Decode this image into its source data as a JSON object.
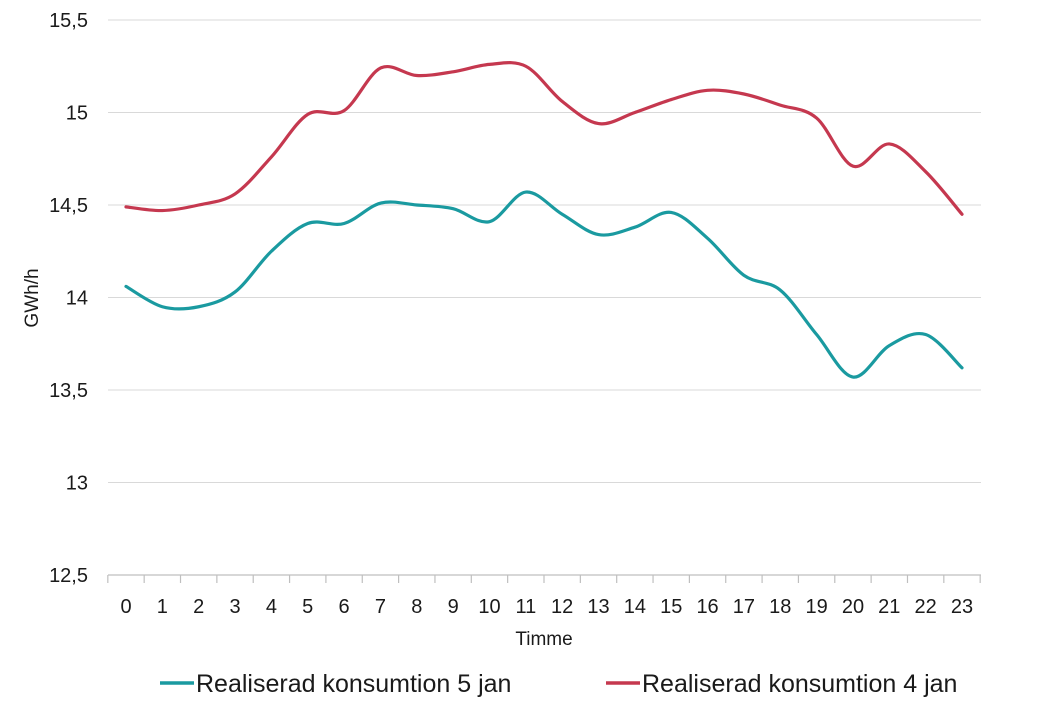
{
  "chart_data": {
    "type": "line",
    "xlabel": "Timme",
    "ylabel": "GWh/h",
    "x": [
      0,
      1,
      2,
      3,
      4,
      5,
      6,
      7,
      8,
      9,
      10,
      11,
      12,
      13,
      14,
      15,
      16,
      17,
      18,
      19,
      20,
      21,
      22,
      23
    ],
    "ylim": [
      12.5,
      15.5
    ],
    "yticks": [
      12.5,
      13,
      13.5,
      14,
      14.5,
      15,
      15.5
    ],
    "ytick_labels": [
      "12,5",
      "13",
      "13,5",
      "14",
      "14,5",
      "15",
      "15,5"
    ],
    "grid": "horizontal",
    "legend_position": "bottom",
    "series": [
      {
        "name": "Realiserad konsumtion 5 jan",
        "color": "#1a9aa0",
        "values": [
          14.06,
          13.95,
          13.95,
          14.03,
          14.25,
          14.4,
          14.4,
          14.51,
          14.5,
          14.48,
          14.41,
          14.57,
          14.45,
          14.34,
          14.38,
          14.46,
          14.32,
          14.12,
          14.04,
          13.8,
          13.57,
          13.74,
          13.8,
          13.62
        ]
      },
      {
        "name": "Realiserad konsumtion 4 jan",
        "color": "#c5384f",
        "values": [
          14.49,
          14.47,
          14.5,
          14.56,
          14.76,
          14.99,
          15.01,
          15.24,
          15.2,
          15.22,
          15.26,
          15.25,
          15.06,
          14.94,
          15.0,
          15.07,
          15.12,
          15.1,
          15.04,
          14.97,
          14.71,
          14.83,
          14.68,
          14.45
        ]
      }
    ]
  }
}
